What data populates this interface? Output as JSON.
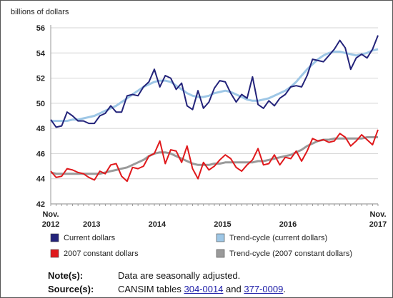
{
  "chart_data": {
    "type": "line",
    "ylabel": "billions of dollars",
    "ylim": [
      42,
      56
    ],
    "yticks": [
      "42",
      "44",
      "46",
      "48",
      "50",
      "52",
      "54",
      "56"
    ],
    "xlim": [
      0,
      60
    ],
    "xticks": [
      {
        "line1": "Nov.",
        "line2": "2012",
        "at": 0
      },
      {
        "line1": "",
        "line2": "2013",
        "at": 7.5
      },
      {
        "line1": "",
        "line2": "2014",
        "at": 19.5
      },
      {
        "line1": "",
        "line2": "2015",
        "at": 31.5
      },
      {
        "line1": "",
        "line2": "2016",
        "at": 43.5
      },
      {
        "line1": "Nov.",
        "line2": "2017",
        "at": 60
      }
    ],
    "x_start": "2012-11",
    "x_end": "2017-11",
    "grid": "horizontal",
    "legend": "bottom",
    "series": [
      {
        "name": "Current dollars",
        "color": "#23237a",
        "style": "solid",
        "values": [
          48.7,
          48.1,
          48.2,
          49.3,
          49.0,
          48.6,
          48.6,
          48.4,
          48.4,
          49.0,
          49.2,
          49.8,
          49.3,
          49.3,
          50.6,
          50.7,
          50.6,
          51.3,
          51.7,
          52.7,
          51.3,
          52.2,
          52.0,
          51.1,
          51.6,
          49.8,
          49.5,
          51.0,
          49.6,
          50.1,
          51.2,
          51.8,
          51.7,
          50.8,
          50.1,
          50.7,
          50.4,
          52.1,
          49.9,
          49.6,
          50.2,
          49.8,
          50.4,
          50.7,
          51.3,
          51.4,
          51.3,
          52.2,
          53.5,
          53.4,
          53.3,
          53.8,
          54.3,
          55.0,
          54.4,
          52.7,
          53.6,
          53.9,
          53.6,
          54.3,
          55.4
        ]
      },
      {
        "name": "Trend-cycle (current dollars)",
        "color": "#9ec7e6",
        "style": "solid",
        "values": [
          48.6,
          48.6,
          48.6,
          48.6,
          48.7,
          48.7,
          48.8,
          48.9,
          49.0,
          49.2,
          49.4,
          49.6,
          49.8,
          50.1,
          50.4,
          50.7,
          51.0,
          51.3,
          51.5,
          51.7,
          51.8,
          51.8,
          51.7,
          51.4,
          51.1,
          50.8,
          50.6,
          50.5,
          50.5,
          50.6,
          50.8,
          50.9,
          51.0,
          50.9,
          50.7,
          50.5,
          50.3,
          50.2,
          50.2,
          50.3,
          50.4,
          50.6,
          50.8,
          51.0,
          51.3,
          51.7,
          52.2,
          52.7,
          53.1,
          53.5,
          53.8,
          54.0,
          54.1,
          54.1,
          54.0,
          53.9,
          53.8,
          53.9,
          54.0,
          54.2,
          54.3
        ]
      },
      {
        "name": "2007 constant dollars",
        "color": "#e0191c",
        "style": "solid",
        "values": [
          44.6,
          44.1,
          44.2,
          44.8,
          44.7,
          44.5,
          44.4,
          44.1,
          43.9,
          44.6,
          44.4,
          45.1,
          45.2,
          44.2,
          43.8,
          44.9,
          44.8,
          45.0,
          45.8,
          46.0,
          47.0,
          45.2,
          46.3,
          46.2,
          45.3,
          46.6,
          44.8,
          44.0,
          45.3,
          44.7,
          45.0,
          45.5,
          45.9,
          45.6,
          44.9,
          44.6,
          45.1,
          45.5,
          46.4,
          45.1,
          45.2,
          45.9,
          45.1,
          45.7,
          45.6,
          46.2,
          45.4,
          46.2,
          47.2,
          47.0,
          47.1,
          46.9,
          47.0,
          47.6,
          47.3,
          46.6,
          47.0,
          47.5,
          47.1,
          46.7,
          47.9
        ]
      },
      {
        "name": "Trend-cycle (2007 constant dollars)",
        "color": "#9a9a9a",
        "style": "solid",
        "values": [
          44.5,
          44.4,
          44.4,
          44.4,
          44.4,
          44.4,
          44.4,
          44.4,
          44.4,
          44.4,
          44.5,
          44.6,
          44.7,
          44.8,
          44.9,
          45.1,
          45.3,
          45.5,
          45.8,
          46.0,
          46.1,
          46.1,
          46.0,
          45.8,
          45.6,
          45.4,
          45.2,
          45.1,
          45.1,
          45.1,
          45.2,
          45.2,
          45.3,
          45.3,
          45.3,
          45.3,
          45.3,
          45.3,
          45.4,
          45.4,
          45.5,
          45.6,
          45.7,
          45.8,
          45.9,
          46.1,
          46.3,
          46.6,
          46.8,
          47.0,
          47.1,
          47.1,
          47.2,
          47.2,
          47.2,
          47.2,
          47.2,
          47.2,
          47.3,
          47.3,
          47.3
        ]
      }
    ]
  },
  "legend_items": [
    {
      "label": "Current dollars",
      "color": "#23237a"
    },
    {
      "label": "Trend-cycle (current dollars)",
      "color": "#9ec7e6"
    },
    {
      "label": "2007 constant dollars",
      "color": "#e0191c"
    },
    {
      "label": "Trend-cycle (2007 constant dollars)",
      "color": "#9a9a9a"
    }
  ],
  "notes": {
    "note_label": "Note(s):",
    "note_text": "Data are seasonally adjusted.",
    "source_label": "Source(s):",
    "source_prefix": "CANSIM tables ",
    "source_link1": "304-0014",
    "source_mid": " and ",
    "source_link2": "377-0009",
    "source_suffix": "."
  }
}
